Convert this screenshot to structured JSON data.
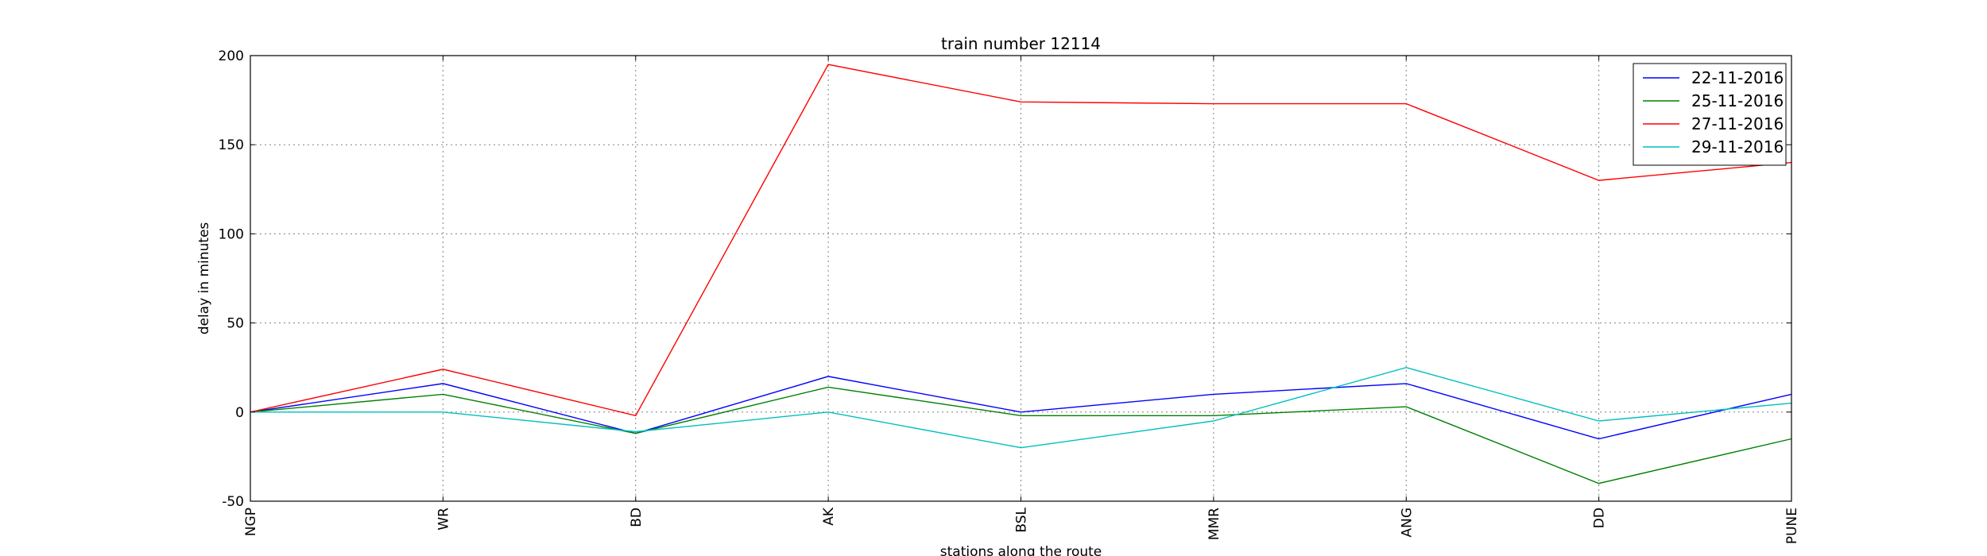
{
  "chart_data": {
    "type": "line",
    "title": "train number 12114",
    "xlabel": "stations along the route",
    "ylabel": "delay in minutes",
    "categories": [
      "NGP",
      "WR",
      "BD",
      "AK",
      "BSL",
      "MMR",
      "ANG",
      "DD",
      "PUNE"
    ],
    "ylim": [
      -50,
      200
    ],
    "yticks": [
      -50,
      0,
      50,
      100,
      150,
      200
    ],
    "grid": true,
    "legend_position": "top-right",
    "series": [
      {
        "name": "22-11-2016",
        "color": "#0000ff",
        "values": [
          0,
          16,
          -12,
          20,
          0,
          10,
          16,
          -15,
          10
        ]
      },
      {
        "name": "25-11-2016",
        "color": "#008000",
        "values": [
          0,
          10,
          -12,
          14,
          -2,
          -2,
          3,
          -40,
          -15
        ]
      },
      {
        "name": "27-11-2016",
        "color": "#ff0000",
        "values": [
          0,
          24,
          -2,
          195,
          174,
          173,
          173,
          130,
          140
        ]
      },
      {
        "name": "29-11-2016",
        "color": "#00bfbf",
        "values": [
          0,
          0,
          -11,
          0,
          -20,
          -5,
          25,
          -5,
          5
        ]
      }
    ]
  }
}
